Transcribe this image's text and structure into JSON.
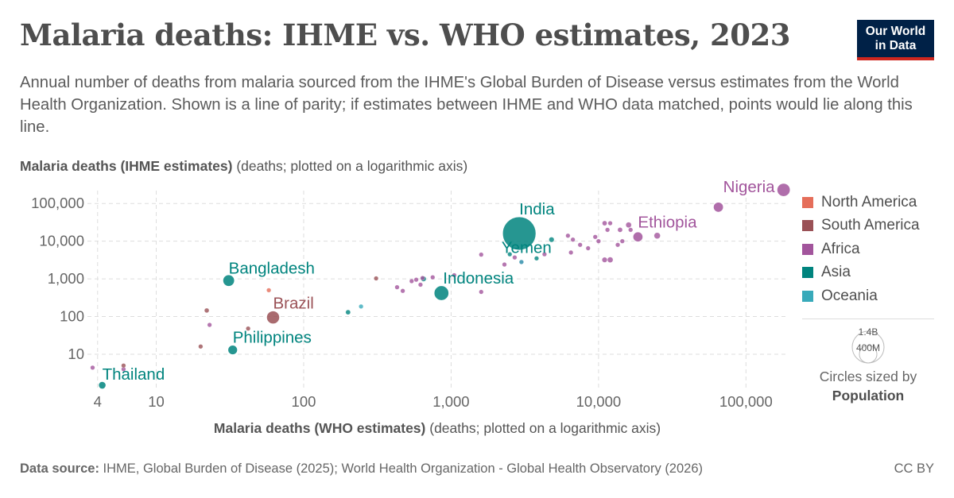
{
  "header": {
    "title": "Malaria deaths: IHME vs. WHO estimates, 2023",
    "subtitle": "Annual number of deaths from malaria sourced from the IHME's Global Burden of Disease versus estimates from the World Health Organization. Shown is a line of parity; if estimates between IHME and WHO data matched, points would lie along this line.",
    "logo_line1": "Our World",
    "logo_line2": "in Data"
  },
  "footer": {
    "source_label": "Data source:",
    "source_text": "IHME, Global Burden of Disease (2025); World Health Organization - Global Health Observatory (2026)",
    "license": "CC BY"
  },
  "size_legend": {
    "big_label": "1.4B",
    "small_label": "400M",
    "line1": "Circles sized by",
    "line2": "Population"
  },
  "chart_data": {
    "type": "scatter",
    "title": "Malaria deaths: IHME vs. WHO estimates, 2023",
    "xlabel": "Malaria deaths (WHO estimates)",
    "xlabel_note": "(deaths; plotted on a logarithmic axis)",
    "ylabel": "Malaria deaths (IHME estimates)",
    "ylabel_note": "(deaths; plotted on a logarithmic axis)",
    "x_scale": "log",
    "y_scale": "log",
    "xlim": [
      3.5,
      190000
    ],
    "ylim": [
      1.3,
      220000
    ],
    "x_ticks": [
      4,
      10,
      100,
      1000,
      10000,
      100000
    ],
    "x_tick_labels": [
      "4",
      "10",
      "100",
      "1,000",
      "10,000",
      "100,000"
    ],
    "y_ticks": [
      10,
      100,
      1000,
      10000,
      100000
    ],
    "y_tick_labels": [
      "10",
      "100",
      "1,000",
      "10,000",
      "100,000"
    ],
    "grid": true,
    "legend_position": "right",
    "colors": {
      "North America": "#e56e5a",
      "South America": "#9a5156",
      "Africa": "#a2559c",
      "Asia": "#00847e",
      "Oceania": "#38aaba"
    },
    "legend": [
      "North America",
      "South America",
      "Africa",
      "Asia",
      "Oceania"
    ],
    "points": [
      {
        "label": "Nigeria",
        "region": "Africa",
        "x": 180000,
        "y": 230000,
        "pop": 223
      },
      {
        "label": "",
        "region": "Africa",
        "x": 65000,
        "y": 80000,
        "pop": 128
      },
      {
        "label": "Ethiopia",
        "region": "Africa",
        "x": 18500,
        "y": 13000,
        "pop": 127
      },
      {
        "label": "",
        "region": "Africa",
        "x": 25000,
        "y": 14000,
        "pop": 50
      },
      {
        "label": "",
        "region": "Africa",
        "x": 16000,
        "y": 27000,
        "pop": 40
      },
      {
        "label": "",
        "region": "Africa",
        "x": 14000,
        "y": 20000,
        "pop": 30
      },
      {
        "label": "",
        "region": "Africa",
        "x": 16500,
        "y": 20000,
        "pop": 25
      },
      {
        "label": "",
        "region": "Africa",
        "x": 11000,
        "y": 30000,
        "pop": 30
      },
      {
        "label": "",
        "region": "Africa",
        "x": 12000,
        "y": 30000,
        "pop": 20
      },
      {
        "label": "",
        "region": "Africa",
        "x": 11500,
        "y": 20000,
        "pop": 18
      },
      {
        "label": "",
        "region": "Africa",
        "x": 9500,
        "y": 13000,
        "pop": 20
      },
      {
        "label": "",
        "region": "Africa",
        "x": 10000,
        "y": 10000,
        "pop": 25
      },
      {
        "label": "",
        "region": "Africa",
        "x": 12000,
        "y": 3200,
        "pop": 40
      },
      {
        "label": "",
        "region": "Africa",
        "x": 11000,
        "y": 3200,
        "pop": 35
      },
      {
        "label": "",
        "region": "Africa",
        "x": 14500,
        "y": 10000,
        "pop": 18
      },
      {
        "label": "",
        "region": "Africa",
        "x": 13500,
        "y": 8000,
        "pop": 18
      },
      {
        "label": "",
        "region": "Africa",
        "x": 7500,
        "y": 8000,
        "pop": 15
      },
      {
        "label": "",
        "region": "Africa",
        "x": 8500,
        "y": 6500,
        "pop": 15
      },
      {
        "label": "",
        "region": "Africa",
        "x": 6200,
        "y": 14000,
        "pop": 25
      },
      {
        "label": "",
        "region": "Africa",
        "x": 6700,
        "y": 11000,
        "pop": 20
      },
      {
        "label": "",
        "region": "Africa",
        "x": 6500,
        "y": 5000,
        "pop": 12
      },
      {
        "label": "",
        "region": "Africa",
        "x": 4300,
        "y": 4500,
        "pop": 15
      },
      {
        "label": "",
        "region": "Africa",
        "x": 3000,
        "y": 2800,
        "pop": 15
      },
      {
        "label": "",
        "region": "Africa",
        "x": 2700,
        "y": 3700,
        "pop": 10
      },
      {
        "label": "",
        "region": "Africa",
        "x": 2300,
        "y": 2400,
        "pop": 8
      },
      {
        "label": "",
        "region": "Africa",
        "x": 1600,
        "y": 4400,
        "pop": 12
      },
      {
        "label": "",
        "region": "Africa",
        "x": 1600,
        "y": 450,
        "pop": 12
      },
      {
        "label": "",
        "region": "Africa",
        "x": 1050,
        "y": 1250,
        "pop": 10
      },
      {
        "label": "",
        "region": "Africa",
        "x": 750,
        "y": 1100,
        "pop": 6
      },
      {
        "label": "",
        "region": "Africa",
        "x": 640,
        "y": 1050,
        "pop": 6
      },
      {
        "label": "",
        "region": "Africa",
        "x": 580,
        "y": 950,
        "pop": 6
      },
      {
        "label": "",
        "region": "Africa",
        "x": 620,
        "y": 700,
        "pop": 8
      },
      {
        "label": "",
        "region": "Africa",
        "x": 540,
        "y": 870,
        "pop": 8
      },
      {
        "label": "",
        "region": "Africa",
        "x": 430,
        "y": 600,
        "pop": 10
      },
      {
        "label": "",
        "region": "Africa",
        "x": 470,
        "y": 480,
        "pop": 8
      },
      {
        "label": "",
        "region": "Africa",
        "x": 23,
        "y": 60,
        "pop": 5
      },
      {
        "label": "",
        "region": "Africa",
        "x": 6,
        "y": 4,
        "pop": 4
      },
      {
        "label": "",
        "region": "Africa",
        "x": 3.7,
        "y": 4.4,
        "pop": 5
      },
      {
        "label": "India",
        "region": "Asia",
        "x": 2900,
        "y": 16000,
        "pop": 1430
      },
      {
        "label": "Yemen",
        "region": "Asia",
        "x": 4800,
        "y": 11000,
        "pop": 34
      },
      {
        "label": "",
        "region": "Asia",
        "x": 3800,
        "y": 3500,
        "pop": 20
      },
      {
        "label": "",
        "region": "Asia",
        "x": 2500,
        "y": 4500,
        "pop": 25
      },
      {
        "label": "Indonesia",
        "region": "Asia",
        "x": 860,
        "y": 420,
        "pop": 278
      },
      {
        "label": "",
        "region": "Asia",
        "x": 650,
        "y": 1000,
        "pop": 35
      },
      {
        "label": "",
        "region": "Asia",
        "x": 200,
        "y": 130,
        "pop": 30
      },
      {
        "label": "Bangladesh",
        "region": "Asia",
        "x": 31,
        "y": 900,
        "pop": 172
      },
      {
        "label": "Philippines",
        "region": "Asia",
        "x": 33,
        "y": 13,
        "pop": 117
      },
      {
        "label": "Thailand",
        "region": "Asia",
        "x": 4.3,
        "y": 1.5,
        "pop": 71
      },
      {
        "label": "",
        "region": "Oceania",
        "x": 3000,
        "y": 2800,
        "pop": 10
      },
      {
        "label": "",
        "region": "Oceania",
        "x": 245,
        "y": 185,
        "pop": 6
      },
      {
        "label": "Brazil",
        "region": "South America",
        "x": 62,
        "y": 95,
        "pop": 216
      },
      {
        "label": "",
        "region": "South America",
        "x": 22,
        "y": 145,
        "pop": 28
      },
      {
        "label": "",
        "region": "South America",
        "x": 20,
        "y": 16,
        "pop": 18
      },
      {
        "label": "",
        "region": "South America",
        "x": 42,
        "y": 48,
        "pop": 4
      },
      {
        "label": "",
        "region": "South America",
        "x": 310,
        "y": 1030,
        "pop": 7
      },
      {
        "label": "",
        "region": "South America",
        "x": 6,
        "y": 5,
        "pop": 4
      },
      {
        "label": "",
        "region": "North America",
        "x": 58,
        "y": 500,
        "pop": 10
      }
    ]
  }
}
